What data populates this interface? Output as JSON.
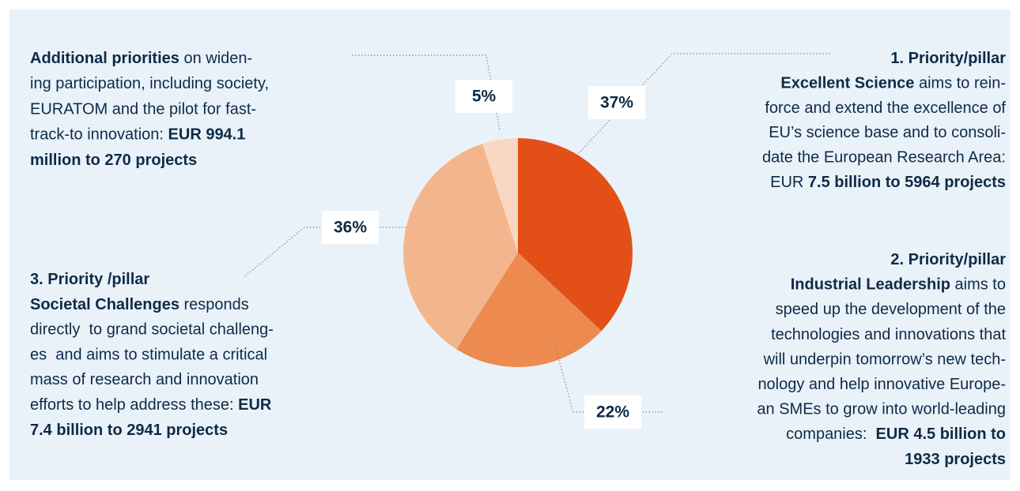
{
  "chart_data": {
    "type": "pie",
    "values": [
      37,
      22,
      36,
      5
    ],
    "value_labels": [
      "37%",
      "22%",
      "36%",
      "5%"
    ],
    "colors": [
      "#e35017",
      "#ec8a50",
      "#f3b68c",
      "#f9d8c3"
    ],
    "annotations": [
      {
        "align": "right",
        "lines": [
          [
            {
              "text": "1. Priority/pillar",
              "bold": true
            }
          ],
          [
            {
              "text": "Excellent Science",
              "bold": true
            },
            {
              "text": " aims to rein-"
            }
          ],
          [
            {
              "text": "force and extend the excellence of"
            }
          ],
          [
            {
              "text": "EU’s science base and to consoli-"
            }
          ],
          [
            {
              "text": "date the European Research Area:"
            }
          ],
          [
            {
              "text": "EUR "
            },
            {
              "text": "7.5 billion to 5964 projects",
              "bold": true
            }
          ]
        ]
      },
      {
        "align": "right",
        "lines": [
          [
            {
              "text": "2. Priority/pillar",
              "bold": true
            }
          ],
          [
            {
              "text": "Industrial Leadership",
              "bold": true
            },
            {
              "text": " aims to"
            }
          ],
          [
            {
              "text": "speed up the development of the"
            }
          ],
          [
            {
              "text": "technologies and innovations that"
            }
          ],
          [
            {
              "text": "will underpin tomorrow’s new tech-"
            }
          ],
          [
            {
              "text": "nology and help innovative Europe-"
            }
          ],
          [
            {
              "text": "an SMEs to grow into world-leading"
            }
          ],
          [
            {
              "text": "companies:  "
            },
            {
              "text": "EUR 4.5 billion to",
              "bold": true
            }
          ],
          [
            {
              "text": "1933 projects",
              "bold": true
            }
          ]
        ]
      },
      {
        "align": "left",
        "lines": [
          [
            {
              "text": "3. Priority /pillar",
              "bold": true
            }
          ],
          [
            {
              "text": "Societal Challenges",
              "bold": true
            },
            {
              "text": " responds"
            }
          ],
          [
            {
              "text": "directly  to grand societal challeng-"
            }
          ],
          [
            {
              "text": "es  and aims to stimulate a critical"
            }
          ],
          [
            {
              "text": "mass of research and innovation"
            }
          ],
          [
            {
              "text": "efforts to help address these: "
            },
            {
              "text": "EUR",
              "bold": true
            }
          ],
          [
            {
              "text": "7.4 billion to 2941 projects",
              "bold": true
            }
          ]
        ]
      },
      {
        "align": "left",
        "lines": [
          [
            {
              "text": "Additional priorities",
              "bold": true
            },
            {
              "text": " on widen-"
            }
          ],
          [
            {
              "text": "ing participation, including society,"
            }
          ],
          [
            {
              "text": "EURATOM and the pilot for fast-"
            }
          ],
          [
            {
              "text": "track-to innovation: "
            },
            {
              "text": "EUR 994.1",
              "bold": true
            }
          ],
          [
            {
              "text": "million to 270 projects",
              "bold": true
            }
          ]
        ]
      }
    ]
  }
}
